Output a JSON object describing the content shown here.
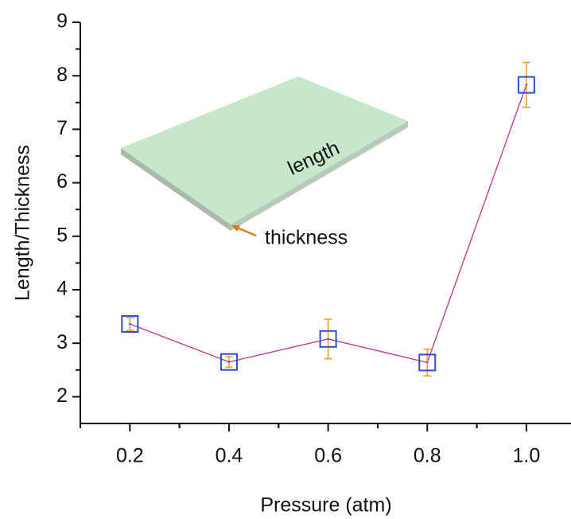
{
  "chart_data": {
    "type": "line",
    "x_label": "Pressure (atm)",
    "y_label": "Length/Thickness",
    "annotations": [
      "length",
      "thickness"
    ],
    "x": [
      0.2,
      0.4,
      0.6,
      0.8,
      1.0
    ],
    "series": [
      {
        "color": "#c8308c",
        "marker_color": "#2a4fd6",
        "error_color": "#f0a030",
        "values": [
          3.36,
          2.65,
          3.08,
          2.64,
          7.83
        ],
        "errors": [
          0.12,
          0.1,
          0.37,
          0.25,
          0.42
        ]
      }
    ],
    "xlim": [
      0.1,
      1.09
    ],
    "xticks": [
      0.2,
      0.4,
      0.6,
      0.8,
      {
        "value": 1.0,
        "label": "1.0"
      }
    ],
    "ylim": [
      1.5,
      9
    ],
    "yticks": [
      2,
      3,
      4,
      5,
      6,
      7,
      8,
      9
    ]
  }
}
